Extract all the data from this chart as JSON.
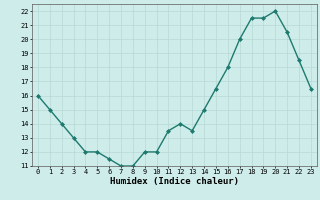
{
  "x": [
    0,
    1,
    2,
    3,
    4,
    5,
    6,
    7,
    8,
    9,
    10,
    11,
    12,
    13,
    14,
    15,
    16,
    17,
    18,
    19,
    20,
    21,
    22,
    23
  ],
  "y": [
    16,
    15,
    14,
    13,
    12,
    12,
    11.5,
    11,
    11,
    12,
    12,
    13.5,
    14,
    13.5,
    15,
    16.5,
    18,
    20,
    21.5,
    21.5,
    22,
    20.5,
    18.5,
    16.5
  ],
  "line_color": "#1e7a6e",
  "marker": "D",
  "marker_size": 2.0,
  "linewidth": 1.0,
  "xlabel": "Humidex (Indice chaleur)",
  "xlim": [
    -0.5,
    23.5
  ],
  "ylim": [
    11,
    22.5
  ],
  "yticks": [
    11,
    12,
    13,
    14,
    15,
    16,
    17,
    18,
    19,
    20,
    21,
    22
  ],
  "xticks": [
    0,
    1,
    2,
    3,
    4,
    5,
    6,
    7,
    8,
    9,
    10,
    11,
    12,
    13,
    14,
    15,
    16,
    17,
    18,
    19,
    20,
    21,
    22,
    23
  ],
  "bg_color": "#ceecea",
  "grid_color": "#b8d8d5",
  "tick_fontsize": 5.0,
  "xlabel_fontsize": 6.5,
  "axis_bg": "#ceecea",
  "spine_color": "#5a5a5a"
}
